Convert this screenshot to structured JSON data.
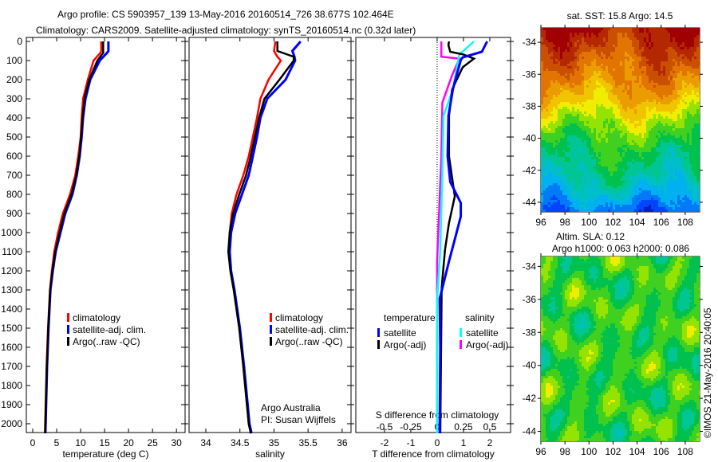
{
  "header": {
    "line1": "Argo profile: CS 5903957_139 13-May-2016 20160514_726 38.677S 102.464E",
    "line2": "Climatology: CARS2009. Satellite-adjusted climatology: synTS_20160514.nc (0.32d later)"
  },
  "credit": "©IMOS 21-May-2016 20:40:05",
  "attribution": {
    "line1": "Argo Australia",
    "line2": "PI: Susan Wijffels"
  },
  "depth_ticks": [
    "0",
    "100",
    "200",
    "300",
    "400",
    "500",
    "600",
    "700",
    "800",
    "900",
    "1000",
    "1100",
    "1200",
    "1300",
    "1400",
    "1500",
    "1600",
    "1700",
    "1800",
    "1900",
    "2000"
  ],
  "colors": {
    "climatology": "#ff0000",
    "satellite": "#0000ff",
    "argo": "#000000",
    "sal_satellite": "#00ffff",
    "sal_argo": "#ff00ff"
  },
  "chart_data": [
    {
      "type": "line",
      "id": "temperature",
      "xlabel": "temperature (deg C)",
      "ylabel": "depth",
      "xlim": [
        -1.33,
        31.8
      ],
      "ylim": [
        2046,
        -21
      ],
      "xticks": [
        "0",
        "5",
        "10",
        "15",
        "20",
        "25",
        "30"
      ],
      "xtick_values": [
        0,
        5,
        10,
        15,
        20,
        25,
        30
      ],
      "legend": [
        "climatology",
        "satellite-adj. clim.",
        "Argo(..raw -QC)"
      ],
      "depth": [
        0,
        50,
        60,
        100,
        200,
        300,
        400,
        500,
        600,
        700,
        800,
        900,
        1000,
        1100,
        1200,
        1300,
        1500,
        1700,
        2000,
        2050
      ],
      "series": [
        {
          "name": "climatology",
          "color": "#ff0000",
          "values": [
            14.3,
            14.3,
            14.1,
            12.7,
            11.5,
            10.5,
            10.2,
            10.0,
            9.5,
            8.9,
            7.8,
            6.3,
            5.3,
            4.5,
            4.0,
            3.6,
            3.2,
            2.9,
            2.6,
            2.55
          ]
        },
        {
          "name": "satellite-adj. clim.",
          "color": "#0000ff",
          "values": [
            15.8,
            15.8,
            15.5,
            14.0,
            12.0,
            11.0,
            10.5,
            10.2,
            9.8,
            9.2,
            8.3,
            6.8,
            5.8,
            4.8,
            4.2,
            3.7,
            3.3,
            3.0,
            2.7,
            2.65
          ]
        },
        {
          "name": "Argo(..raw -QC)",
          "color": "#000000",
          "values": [
            14.7,
            14.7,
            14.7,
            13.5,
            11.8,
            10.8,
            10.4,
            10.1,
            9.7,
            9.1,
            8.1,
            6.6,
            5.6,
            4.7,
            4.1,
            3.65,
            3.25,
            2.95,
            2.65,
            2.6
          ]
        }
      ]
    },
    {
      "type": "line",
      "id": "salinity",
      "xlabel": "salinity",
      "xlim": [
        33.754,
        36.13
      ],
      "ylim": [
        2046,
        -21
      ],
      "xticks": [
        "34",
        "34.5",
        "35",
        "35.5",
        "36"
      ],
      "xtick_values": [
        34,
        34.5,
        35,
        35.5,
        36
      ],
      "legend": [
        "climatology",
        "satellite-adj. clim.",
        "Argo(..raw -QC)"
      ],
      "depth": [
        0,
        50,
        80,
        100,
        200,
        300,
        400,
        500,
        600,
        700,
        800,
        900,
        1000,
        1100,
        1200,
        1300,
        1500,
        1700,
        2000,
        2050
      ],
      "series": [
        {
          "name": "climatology",
          "color": "#ff0000",
          "values": [
            35.02,
            35.0,
            35.05,
            35.1,
            34.92,
            34.8,
            34.75,
            34.69,
            34.63,
            34.55,
            34.45,
            34.38,
            34.35,
            34.34,
            34.36,
            34.41,
            34.49,
            34.55,
            34.63,
            34.66
          ]
        },
        {
          "name": "satellite-adj. clim.",
          "color": "#0000ff",
          "values": [
            35.39,
            35.27,
            35.3,
            35.31,
            35.17,
            34.9,
            34.8,
            34.75,
            34.69,
            34.63,
            34.53,
            34.43,
            34.37,
            34.35,
            34.37,
            34.42,
            34.5,
            34.56,
            34.64,
            34.67
          ]
        },
        {
          "name": "Argo(..raw -QC)",
          "color": "#000000",
          "values": [
            35.05,
            35.05,
            35.29,
            35.29,
            35.08,
            34.86,
            34.78,
            34.72,
            34.66,
            34.59,
            34.49,
            34.4,
            34.35,
            34.33,
            34.36,
            34.41,
            34.49,
            34.55,
            34.63,
            34.66
          ]
        }
      ]
    },
    {
      "type": "line",
      "id": "difference",
      "xlabel": "T difference from climatology",
      "x2label": "S difference from climatology",
      "xlim": [
        -3.09,
        2.79
      ],
      "x2lim": [
        -0.7725,
        0.6975
      ],
      "ylim": [
        2046,
        -21
      ],
      "xticks": [
        "-2",
        "-1",
        "0",
        "1",
        "2"
      ],
      "xtick_values": [
        -2,
        -1,
        0,
        1,
        2
      ],
      "x2ticks": [
        "-0.5",
        "-0.25",
        "0",
        "0.25",
        "0.5"
      ],
      "x2tick_values": [
        -0.5,
        -0.25,
        0,
        0.25,
        0.5
      ],
      "legend": {
        "temperature_title": "temperature",
        "salinity_title": "salinity",
        "satellite": "satellite",
        "argo": "Argo(-adj)"
      },
      "series": [
        {
          "name": "T satellite",
          "axis": "T",
          "color": "#0000ff",
          "depth": [
            0,
            54,
            83,
            97,
            250,
            390,
            600,
            735,
            845,
            915,
            1010,
            1150,
            1290,
            1345,
            1600,
            2050
          ],
          "values": [
            1.9,
            1.7,
            0.97,
            0.9,
            0.6,
            0.43,
            0.4,
            0.5,
            0.9,
            0.9,
            0.72,
            0.45,
            0.2,
            0.1,
            0.12,
            0.1
          ]
        },
        {
          "name": "T Argo(-adj)",
          "axis": "T",
          "color": "#000000",
          "depth": [
            0,
            20,
            54,
            68,
            90,
            135,
            250,
            390,
            600,
            810,
            950,
            1090,
            1290,
            1600,
            2050
          ],
          "values": [
            0.45,
            0.43,
            0.5,
            1.0,
            1.4,
            0.97,
            0.57,
            0.45,
            0.45,
            0.67,
            0.45,
            0.3,
            0.17,
            0.15,
            0.12
          ]
        },
        {
          "name": "S satellite",
          "axis": "S",
          "color": "#00ffff",
          "depth": [
            0,
            68,
            250,
            390,
            670,
            1090,
            1350,
            2050
          ],
          "values": [
            0.35,
            0.21,
            0.15,
            0.06,
            0.05,
            0.03,
            0.0,
            0.0
          ]
        },
        {
          "name": "S Argo(-adj)",
          "axis": "S",
          "color": "#ff00ff",
          "depth": [
            0,
            80,
            90,
            180,
            320,
            600,
            1150,
            2050
          ],
          "values": [
            0.04,
            0.04,
            0.21,
            0.14,
            0.05,
            0.04,
            0.0,
            0.0
          ]
        }
      ]
    },
    {
      "type": "heatmap",
      "id": "sst-map",
      "title": "sat. SST: 15.8 Argo: 14.5",
      "xticks": [
        "96",
        "98",
        "100",
        "102",
        "104",
        "106",
        "108"
      ],
      "xtick_values": [
        96,
        98,
        100,
        102,
        104,
        106,
        108
      ],
      "yticks": [
        "-34",
        "-36",
        "-38",
        "-40",
        "-42",
        "-44"
      ],
      "ytick_values": [
        -34,
        -36,
        -38,
        -40,
        -42,
        -44
      ],
      "xlim": [
        96,
        109.2
      ],
      "ylim": [
        -33.1,
        -44.6
      ],
      "row_lat": [
        -33,
        -34.5,
        -36,
        -37.5,
        -39,
        -40.5,
        -42,
        -43.5,
        -44.6
      ],
      "row_level": [
        0.97,
        0.88,
        0.8,
        0.7,
        0.56,
        0.45,
        0.38,
        0.27,
        0.15
      ]
    },
    {
      "type": "heatmap",
      "id": "sla-map",
      "title": "Altim. SLA: 0.12",
      "subtitle": "Argo h1000: 0.063 h2000: 0.086",
      "xticks": [
        "96",
        "98",
        "100",
        "102",
        "104",
        "106",
        "108"
      ],
      "xtick_values": [
        96,
        98,
        100,
        102,
        104,
        106,
        108
      ],
      "yticks": [
        "-34",
        "-36",
        "-38",
        "-40",
        "-42",
        "-44"
      ],
      "ytick_values": [
        -34,
        -36,
        -38,
        -40,
        -42,
        -44
      ],
      "xlim": [
        96,
        109.2
      ],
      "ylim": [
        -33.4,
        -44.6
      ],
      "row_lat": [
        -33.4,
        -44.6
      ],
      "row_level": [
        0.5,
        0.5
      ]
    }
  ]
}
